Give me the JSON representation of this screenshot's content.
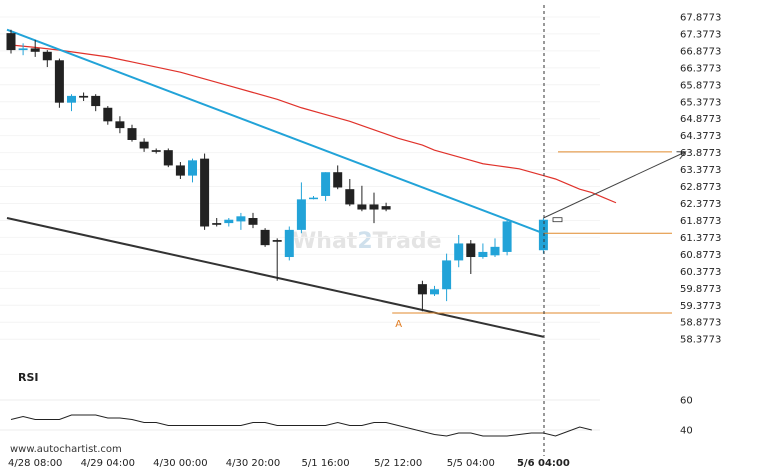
{
  "watermark": {
    "part1": "Wh",
    "part2": "a",
    "part3": "t",
    "num": "2",
    "part4": "Trade"
  },
  "site": "www.autochartist.com",
  "rsi_title": "RSI",
  "point_label": "A",
  "chart_data": {
    "type": "candlestick",
    "y_ticks": [
      "67.8773",
      "67.3773",
      "66.8773",
      "66.3773",
      "65.8773",
      "65.3773",
      "64.8773",
      "64.3773",
      "63.8773",
      "63.3773",
      "62.8773",
      "62.3773",
      "61.8773",
      "61.3773",
      "60.8773",
      "60.3773",
      "59.8773",
      "59.3773",
      "58.8773",
      "58.3773"
    ],
    "ylim": [
      58.0,
      68.2
    ],
    "x_ticks": [
      "4/28 08:00",
      "4/29 04:00",
      "4/30 00:00",
      "4/30 20:00",
      "5/1 16:00",
      "5/2 12:00",
      "5/5 04:00",
      "5/6 04:00"
    ],
    "x_tick_index": [
      2,
      8,
      14,
      20,
      26,
      32,
      38,
      44
    ],
    "current_index": 44,
    "candles": [
      {
        "o": 67.4,
        "h": 67.5,
        "l": 66.8,
        "c": 66.9
      },
      {
        "o": 66.9,
        "h": 67.1,
        "l": 66.75,
        "c": 66.95
      },
      {
        "o": 66.95,
        "h": 67.2,
        "l": 66.7,
        "c": 66.85
      },
      {
        "o": 66.85,
        "h": 66.9,
        "l": 66.4,
        "c": 66.6
      },
      {
        "o": 66.6,
        "h": 66.65,
        "l": 65.2,
        "c": 65.35
      },
      {
        "o": 65.35,
        "h": 65.6,
        "l": 65.1,
        "c": 65.55
      },
      {
        "o": 65.55,
        "h": 65.65,
        "l": 65.4,
        "c": 65.5
      },
      {
        "o": 65.55,
        "h": 65.6,
        "l": 65.1,
        "c": 65.25
      },
      {
        "o": 65.2,
        "h": 65.25,
        "l": 64.7,
        "c": 64.8
      },
      {
        "o": 64.8,
        "h": 64.95,
        "l": 64.45,
        "c": 64.6
      },
      {
        "o": 64.6,
        "h": 64.7,
        "l": 64.2,
        "c": 64.25
      },
      {
        "o": 64.2,
        "h": 64.3,
        "l": 63.9,
        "c": 64.0
      },
      {
        "o": 63.95,
        "h": 64.0,
        "l": 63.85,
        "c": 63.9
      },
      {
        "o": 63.95,
        "h": 64.0,
        "l": 63.45,
        "c": 63.5
      },
      {
        "o": 63.5,
        "h": 63.6,
        "l": 63.1,
        "c": 63.2
      },
      {
        "o": 63.2,
        "h": 63.7,
        "l": 63.0,
        "c": 63.65
      },
      {
        "o": 63.7,
        "h": 63.85,
        "l": 61.6,
        "c": 61.7
      },
      {
        "o": 61.8,
        "h": 61.95,
        "l": 61.7,
        "c": 61.75
      },
      {
        "o": 61.8,
        "h": 61.95,
        "l": 61.7,
        "c": 61.9
      },
      {
        "o": 61.85,
        "h": 62.1,
        "l": 61.6,
        "c": 62.0
      },
      {
        "o": 61.95,
        "h": 62.1,
        "l": 61.65,
        "c": 61.75
      },
      {
        "o": 61.6,
        "h": 61.65,
        "l": 61.1,
        "c": 61.15
      },
      {
        "o": 61.3,
        "h": 61.35,
        "l": 60.1,
        "c": 61.25
      },
      {
        "o": 60.8,
        "h": 61.7,
        "l": 60.7,
        "c": 61.6
      },
      {
        "o": 61.6,
        "h": 63.0,
        "l": 61.5,
        "c": 62.5
      },
      {
        "o": 62.55,
        "h": 62.6,
        "l": 62.5,
        "c": 62.55
      },
      {
        "o": 62.6,
        "h": 63.3,
        "l": 62.45,
        "c": 63.3
      },
      {
        "o": 63.3,
        "h": 63.5,
        "l": 62.8,
        "c": 62.85
      },
      {
        "o": 62.8,
        "h": 63.1,
        "l": 62.3,
        "c": 62.35
      },
      {
        "o": 62.35,
        "h": 62.9,
        "l": 62.15,
        "c": 62.2
      },
      {
        "o": 62.35,
        "h": 62.7,
        "l": 61.8,
        "c": 62.2
      },
      {
        "o": 62.3,
        "h": 62.4,
        "l": 62.15,
        "c": 62.2
      },
      {
        "o": 60.0,
        "h": 60.1,
        "l": 59.2,
        "c": 59.7
      },
      {
        "o": 59.7,
        "h": 59.95,
        "l": 59.65,
        "c": 59.85
      },
      {
        "o": 59.85,
        "h": 60.9,
        "l": 59.5,
        "c": 60.7
      },
      {
        "o": 60.7,
        "h": 61.45,
        "l": 60.5,
        "c": 61.2
      },
      {
        "o": 61.2,
        "h": 61.3,
        "l": 60.3,
        "c": 60.8
      },
      {
        "o": 60.8,
        "h": 61.2,
        "l": 60.75,
        "c": 60.95
      },
      {
        "o": 60.85,
        "h": 61.35,
        "l": 60.8,
        "c": 61.1
      },
      {
        "o": 60.95,
        "h": 61.9,
        "l": 60.85,
        "c": 61.85
      }
    ],
    "candle_index": [
      0,
      1,
      2,
      3,
      4,
      5,
      6,
      7,
      8,
      9,
      10,
      11,
      12,
      13,
      14,
      15,
      16,
      17,
      18,
      19,
      20,
      21,
      22,
      23,
      24,
      25,
      26,
      27,
      28,
      29,
      30,
      31,
      32,
      33,
      34,
      35,
      36,
      37,
      38,
      39
    ],
    "candle_slot": [
      0,
      1,
      2,
      3,
      4,
      5,
      6,
      7,
      8,
      9,
      10,
      11,
      12,
      13,
      14,
      15,
      16,
      17,
      18,
      19,
      20,
      21,
      22,
      23,
      24,
      25,
      26,
      27,
      28,
      29,
      30,
      31,
      34,
      35,
      36,
      37,
      38,
      39,
      40,
      41
    ],
    "last_candle": {
      "slot": 44,
      "o": 61.0,
      "h": 61.95,
      "l": 60.9,
      "c": 61.9
    },
    "ma": [
      67.05,
      66.98,
      66.9,
      66.8,
      66.7,
      66.55,
      66.4,
      66.25,
      66.05,
      65.85,
      65.65,
      65.45,
      65.2,
      65.0,
      64.8,
      64.55,
      64.3,
      64.1,
      63.95,
      63.85,
      63.75,
      63.65,
      63.55,
      63.5,
      63.45,
      63.4,
      63.3,
      63.2,
      63.1,
      62.95,
      62.8,
      62.7,
      62.55,
      62.4
    ],
    "ma_slot": [
      0,
      2,
      4,
      6,
      8,
      10,
      12,
      14,
      16,
      18,
      20,
      22,
      24,
      26,
      28,
      30,
      32,
      34,
      35,
      36,
      37,
      38,
      39,
      40,
      41,
      42,
      43,
      44,
      45,
      46,
      47,
      48,
      49,
      50
    ],
    "upper_line": {
      "from": [
        0,
        67.5
      ],
      "to": [
        44,
        61.5
      ]
    },
    "lower_line": {
      "from": [
        0,
        61.95
      ],
      "to": [
        44,
        58.45
      ]
    },
    "resistance_level": 61.5,
    "support_level": 59.15,
    "target_level": 63.9,
    "forecast_arrow": {
      "from": [
        44,
        61.95
      ],
      "to": [
        55,
        63.9
      ]
    },
    "point_A": {
      "slot": 32,
      "value": 59.15
    },
    "rsi_ticks": [
      "60",
      "40"
    ],
    "rsi_range": [
      30,
      70
    ],
    "rsi": [
      47,
      49,
      47,
      47,
      47,
      50,
      50,
      50,
      48,
      48,
      47,
      45,
      45,
      43,
      43,
      43,
      43,
      43,
      43,
      43,
      45,
      45,
      43,
      43,
      43,
      43,
      43,
      45,
      43,
      43,
      45,
      45,
      43,
      41,
      39,
      37,
      36,
      38,
      38,
      36,
      36,
      36,
      37,
      38,
      38,
      36,
      39,
      42,
      40
    ]
  },
  "colors": {
    "bull": "#22a3d8",
    "bear": "#222222",
    "ma": "#e0322b",
    "upper_line": "#22a3d8",
    "lower_line": "#333333",
    "levels": "#e08a2c",
    "arrow": "#444444"
  }
}
